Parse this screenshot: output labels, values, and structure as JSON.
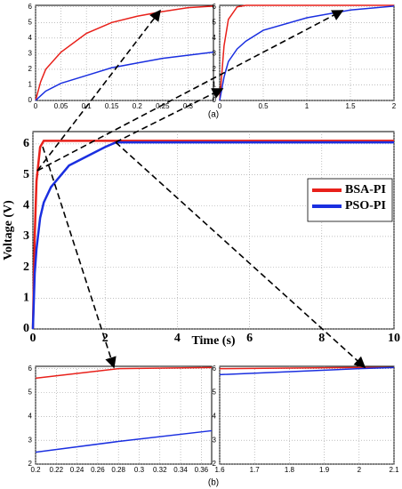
{
  "captions": [
    "(a)",
    "(b)"
  ],
  "chart_data": [
    {
      "type": "line",
      "x": [
        0,
        0.01,
        0.02,
        0.05,
        0.1,
        0.15,
        0.2,
        0.25,
        0.3,
        0.35
      ],
      "series": [
        {
          "color": "#e8201a",
          "values": [
            0,
            1.2,
            2.0,
            3.1,
            4.3,
            5.0,
            5.4,
            5.7,
            5.95,
            6.05
          ]
        },
        {
          "color": "#1a2fe0",
          "values": [
            0,
            0.3,
            0.6,
            1.1,
            1.6,
            2.1,
            2.4,
            2.7,
            2.9,
            3.1
          ]
        }
      ],
      "xlim": [
        0,
        0.35
      ],
      "xticks": [
        0,
        0.05,
        0.1,
        0.15,
        0.2,
        0.25,
        0.3
      ],
      "ylim": [
        0,
        6.1
      ],
      "yticks": [
        0,
        1,
        2,
        3,
        4,
        5,
        6
      ],
      "grid": true
    },
    {
      "type": "line",
      "x": [
        0,
        0.05,
        0.1,
        0.2,
        0.3,
        0.5,
        1,
        1.5,
        2
      ],
      "series": [
        {
          "color": "#e8201a",
          "values": [
            0,
            3.5,
            5.2,
            6.0,
            6.1,
            6.1,
            6.1,
            6.1,
            6.1
          ]
        },
        {
          "color": "#1a2fe0",
          "values": [
            0,
            1.5,
            2.5,
            3.3,
            3.8,
            4.5,
            5.3,
            5.8,
            6.05
          ]
        }
      ],
      "xlim": [
        0,
        2
      ],
      "xticks": [
        0,
        0.5,
        1,
        1.5,
        2
      ],
      "ylim": [
        0,
        6.1
      ],
      "yticks": [
        0,
        1,
        2,
        3,
        4,
        5,
        6
      ],
      "grid": true
    },
    {
      "type": "line",
      "x": [
        0,
        0.05,
        0.1,
        0.2,
        0.3,
        0.5,
        1,
        1.5,
        2,
        2.3,
        3,
        5,
        10
      ],
      "series": [
        {
          "name": "BSA-PI",
          "color": "#e8201a",
          "values": [
            0,
            3,
            4.8,
            5.9,
            6.1,
            6.1,
            6.1,
            6.1,
            6.1,
            6.1,
            6.1,
            6.1,
            6.1
          ]
        },
        {
          "name": "PSO-PI",
          "color": "#1a2fe0",
          "values": [
            0,
            1.8,
            2.6,
            3.6,
            4.1,
            4.6,
            5.3,
            5.6,
            5.9,
            6.05,
            6.05,
            6.05,
            6.05
          ]
        }
      ],
      "x_label": "Time (s)",
      "y_label": "Voltage (V)",
      "xlim": [
        0,
        10
      ],
      "xticks": [
        0,
        2,
        4,
        6,
        8,
        10
      ],
      "ylim": [
        0,
        6.4
      ],
      "yticks": [
        0,
        1,
        2,
        3,
        4,
        5,
        6
      ],
      "grid": true,
      "legend": "right"
    },
    {
      "type": "line",
      "x": [
        0.2,
        0.28,
        0.37
      ],
      "series": [
        {
          "color": "#e8201a",
          "values": [
            5.6,
            6.0,
            6.05
          ]
        },
        {
          "color": "#1a2fe0",
          "values": [
            2.5,
            2.95,
            3.4
          ]
        }
      ],
      "xlim": [
        0.2,
        0.37
      ],
      "xticks": [
        0.2,
        0.22,
        0.24,
        0.26,
        0.28,
        0.3,
        0.32,
        0.34,
        0.36
      ],
      "ylim": [
        2,
        6.1
      ],
      "yticks": [
        2,
        3,
        4,
        5,
        6
      ],
      "grid": true
    },
    {
      "type": "line",
      "x": [
        1.6,
        2.0,
        2.1
      ],
      "series": [
        {
          "color": "#e8201a",
          "values": [
            6.0,
            6.05,
            6.05
          ]
        },
        {
          "color": "#1a2fe0",
          "values": [
            5.75,
            6.0,
            6.05
          ]
        }
      ],
      "xlim": [
        1.6,
        2.1
      ],
      "xticks": [
        1.6,
        1.7,
        1.8,
        1.9,
        2,
        2.1
      ],
      "ylim": [
        2,
        6.1
      ],
      "yticks": [
        2,
        3,
        4,
        5,
        6
      ],
      "grid": true
    }
  ]
}
